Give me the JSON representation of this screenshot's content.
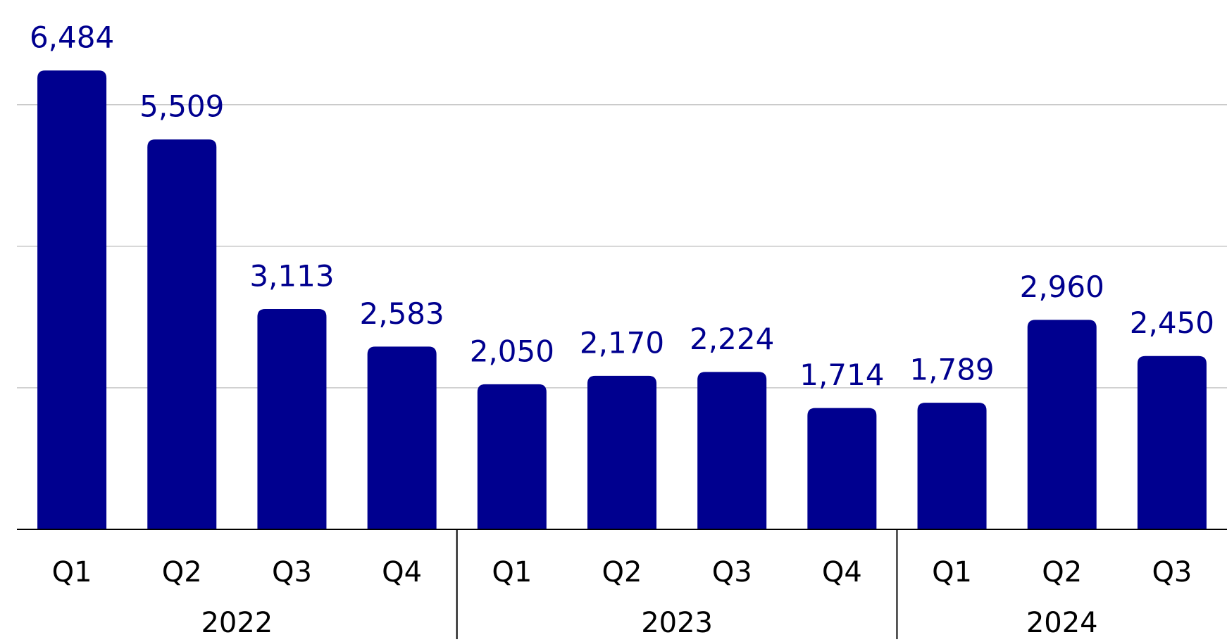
{
  "chart_data": {
    "type": "bar",
    "color": "#00008f",
    "ylim": [
      0,
      7480
    ],
    "yticks": [
      0,
      2000,
      4000,
      6000
    ],
    "grid": true,
    "groups": [
      {
        "name": "2022",
        "categories": [
          "Q1",
          "Q2",
          "Q3",
          "Q4"
        ],
        "values": [
          6484,
          5509,
          3113,
          2583
        ],
        "value_labels": [
          "6,484",
          "5,509",
          "3,113",
          "2,583"
        ]
      },
      {
        "name": "2023",
        "categories": [
          "Q1",
          "Q2",
          "Q3",
          "Q4"
        ],
        "values": [
          2050,
          2170,
          2224,
          1714
        ],
        "value_labels": [
          "2,050",
          "2,170",
          "2,224",
          "1,714"
        ]
      },
      {
        "name": "2024",
        "categories": [
          "Q1",
          "Q2",
          "Q3"
        ],
        "values": [
          1789,
          2960,
          2450
        ],
        "value_labels": [
          "1,789",
          "2,960",
          "2,450"
        ]
      }
    ]
  }
}
